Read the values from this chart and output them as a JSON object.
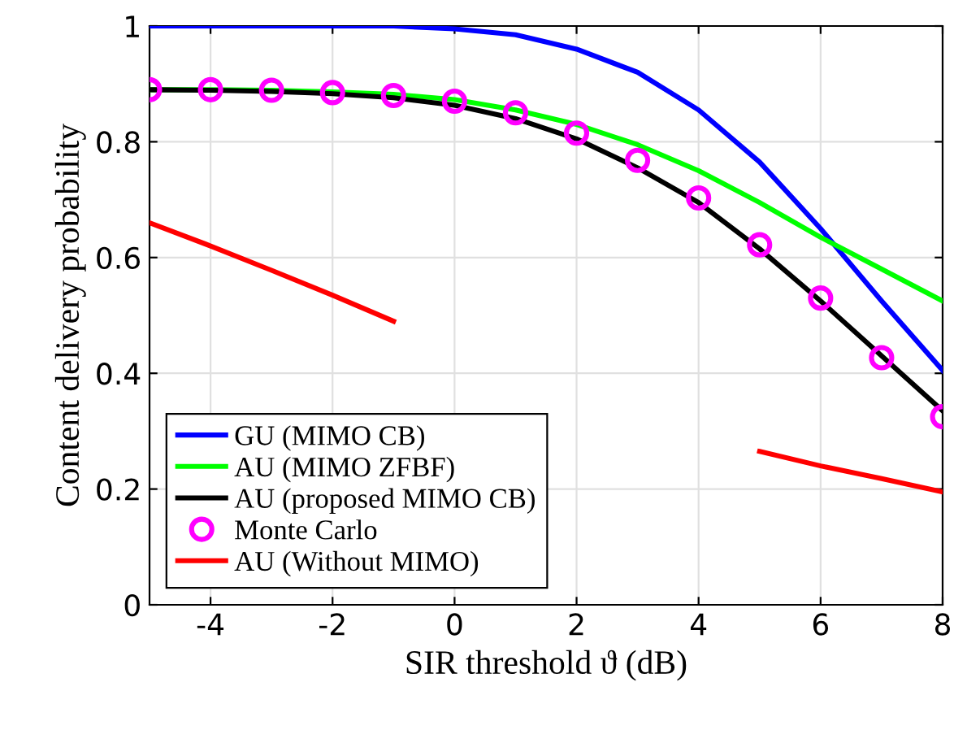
{
  "chart_data": {
    "type": "line",
    "xlabel": "SIR threshold ϑ (dB)",
    "ylabel": "Content delivery probability",
    "x": [
      -5,
      -4,
      -3,
      -2,
      -1,
      0,
      1,
      2,
      3,
      4,
      5,
      6,
      7,
      8
    ],
    "xlim": [
      -5,
      8
    ],
    "xticks": [
      -4,
      -2,
      0,
      2,
      4,
      6,
      8
    ],
    "ylim": [
      0,
      1
    ],
    "yticks": [
      0,
      0.2,
      0.4,
      0.6,
      0.8,
      1
    ],
    "grid": true,
    "legend": "bottom left",
    "series": [
      {
        "name": "GU (MIMO CB)",
        "color": "#0000ff",
        "values": [
          1.0,
          1.0,
          1.0,
          1.0,
          1.0,
          0.995,
          0.985,
          0.96,
          0.92,
          0.855,
          0.765,
          0.65,
          0.525,
          0.405
        ]
      },
      {
        "name": "AU (MIMO ZFBF)",
        "color": "#00ff00",
        "values": [
          0.89,
          0.89,
          0.889,
          0.886,
          0.882,
          0.873,
          0.855,
          0.83,
          0.795,
          0.75,
          0.695,
          0.635,
          0.58,
          0.525
        ]
      },
      {
        "name": "AU (proposed MIMO CB)",
        "color": "#000000",
        "values": [
          0.89,
          0.889,
          0.887,
          0.883,
          0.876,
          0.863,
          0.84,
          0.805,
          0.755,
          0.695,
          0.615,
          0.525,
          0.43,
          0.335
        ]
      },
      {
        "name": "Monte Carlo",
        "color": "#ff00ff",
        "type": "scatter",
        "marker": "circle",
        "values": [
          0.89,
          0.89,
          0.889,
          0.885,
          0.88,
          0.87,
          0.85,
          0.815,
          0.768,
          0.703,
          0.622,
          0.53,
          0.427,
          0.325
        ]
      },
      {
        "name": "AU (Without MIMO)",
        "color": "#ff0000",
        "values": [
          0.66,
          0.62,
          0.578,
          0.535,
          0.49,
          null,
          null,
          null,
          null,
          null,
          0.265,
          0.24,
          0.218,
          0.195
        ]
      }
    ]
  }
}
